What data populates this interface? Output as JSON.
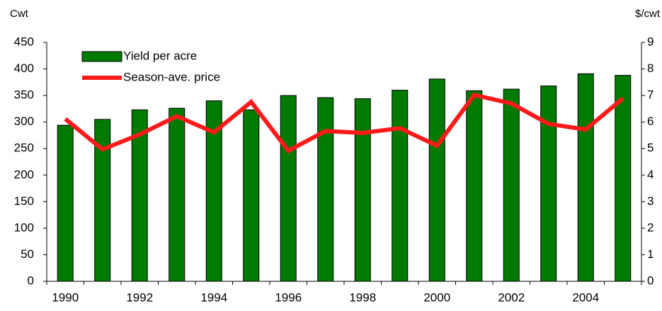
{
  "chart_data": {
    "type": "bar-line",
    "y_label": "Cwt",
    "y2_label": "$/cwt",
    "categories": [
      "1990",
      null,
      "1992",
      null,
      "1994",
      null,
      "1996",
      null,
      "1998",
      null,
      "2000",
      null,
      "2002",
      null,
      "2004",
      null
    ],
    "series": [
      {
        "name": "Yield per acre",
        "type": "bar",
        "color": "#007a00",
        "values": [
          294,
          305,
          323,
          326,
          340,
          323,
          350,
          346,
          344,
          360,
          381,
          359,
          362,
          368,
          391,
          388
        ]
      },
      {
        "name": "Season-ave. price",
        "type": "line",
        "axis": "y2",
        "color": "#ff1a1a",
        "values": [
          6.12,
          4.97,
          5.53,
          6.22,
          5.61,
          6.76,
          4.92,
          5.66,
          5.59,
          5.77,
          5.11,
          7.02,
          6.7,
          5.93,
          5.72,
          6.89
        ]
      }
    ],
    "ylim": [
      0,
      450
    ],
    "yticks": [
      0,
      50,
      100,
      150,
      200,
      250,
      300,
      350,
      400,
      450
    ],
    "y2lim": [
      0,
      9
    ],
    "y2ticks": [
      0,
      1,
      2,
      3,
      4,
      5,
      6,
      7,
      8,
      9
    ],
    "legend": "upper-left"
  }
}
